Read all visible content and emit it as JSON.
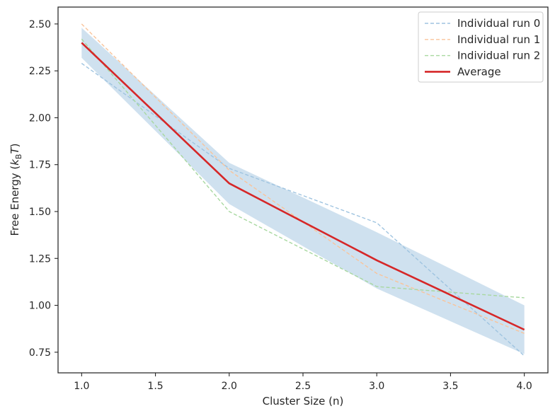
{
  "chart_data": {
    "type": "line",
    "title": "",
    "xlabel": "Cluster Size (n)",
    "ylabel_main": "Free Energy (",
    "ylabel_k": "k",
    "ylabel_sub": "B",
    "ylabel_T": "T",
    "ylabel_close": ")",
    "xlim": [
      0.84,
      4.16
    ],
    "ylim": [
      0.64,
      2.59
    ],
    "x": [
      1.0,
      2.0,
      3.0,
      4.0
    ],
    "x_ticks": [
      1.0,
      1.5,
      2.0,
      2.5,
      3.0,
      3.5,
      4.0
    ],
    "x_tick_labels": [
      "1.0",
      "1.5",
      "2.0",
      "2.5",
      "3.0",
      "3.5",
      "4.0"
    ],
    "y_ticks": [
      0.75,
      1.0,
      1.25,
      1.5,
      1.75,
      2.0,
      2.25,
      2.5
    ],
    "y_tick_labels": [
      "0.75",
      "1.00",
      "1.25",
      "1.50",
      "1.75",
      "2.00",
      "2.25",
      "2.50"
    ],
    "series": [
      {
        "name": "Individual run 0",
        "values": [
          2.29,
          1.73,
          1.44,
          0.73
        ],
        "color": "#9fc4e0",
        "style": "dashed"
      },
      {
        "name": "Individual run 1",
        "values": [
          2.5,
          1.72,
          1.17,
          0.85
        ],
        "color": "#f9c49b",
        "style": "dashed"
      },
      {
        "name": "Individual run 2",
        "values": [
          2.42,
          1.5,
          1.1,
          1.04
        ],
        "color": "#a8d8a0",
        "style": "dashed"
      },
      {
        "name": "Average",
        "values": [
          2.4,
          1.65,
          1.24,
          0.87
        ],
        "color": "#d62728",
        "style": "solid"
      }
    ],
    "band": {
      "lower": [
        2.32,
        1.54,
        1.09,
        0.74
      ],
      "upper": [
        2.48,
        1.76,
        1.39,
        1.0
      ],
      "color": "#cfe1ef"
    },
    "legend_position": "top-right",
    "grid": false
  }
}
